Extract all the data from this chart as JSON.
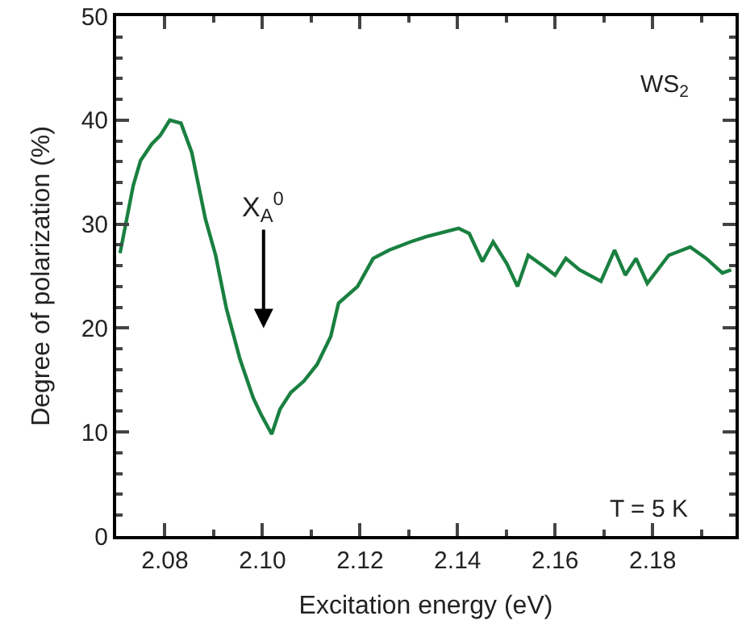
{
  "chart_data": {
    "type": "line",
    "xlabel": "Excitation energy (eV)",
    "ylabel": "Degree of polarization (%)",
    "x": [
      2.0708,
      2.0735,
      2.075,
      2.0773,
      2.079,
      2.081,
      2.0833,
      2.0855,
      2.0883,
      2.0904,
      2.0926,
      2.0954,
      2.0981,
      2.0997,
      2.1019,
      2.1036,
      2.1058,
      2.1085,
      2.1112,
      2.114,
      2.1156,
      2.1195,
      2.1227,
      2.126,
      2.1304,
      2.1336,
      2.1402,
      2.1424,
      2.1451,
      2.1473,
      2.1501,
      2.1523,
      2.1545,
      2.1578,
      2.16,
      2.1622,
      2.165,
      2.1694,
      2.1722,
      2.1744,
      2.1766,
      2.1789,
      2.1833,
      2.1877,
      2.191,
      2.1943,
      2.1961
    ],
    "series": [
      {
        "color": "#1a8040",
        "values": [
          27.2,
          33.7,
          36.1,
          37.7,
          38.5,
          40.0,
          39.7,
          36.9,
          30.5,
          27.0,
          21.9,
          17.0,
          13.3,
          11.7,
          9.8,
          12.2,
          13.8,
          14.9,
          16.5,
          19.2,
          22.4,
          24.0,
          26.7,
          27.5,
          28.3,
          28.8,
          29.6,
          29.1,
          26.4,
          28.3,
          26.2,
          24.0,
          27.0,
          25.9,
          25.1,
          26.7,
          25.6,
          24.5,
          27.5,
          25.1,
          26.7,
          24.3,
          27.0,
          27.8,
          26.7,
          25.3,
          25.6
        ]
      }
    ],
    "xlim": [
      2.07,
      2.197
    ],
    "xticks": [
      2.08,
      {
        "value": 2.1,
        "label": "2.10"
      },
      2.12,
      2.14,
      2.16,
      2.18
    ],
    "ylim": [
      0,
      50
    ],
    "yticks": [
      0,
      10,
      20,
      30,
      40,
      50
    ],
    "annotations": [
      "X$_{A}$$^{0}$",
      "WS$_{2}$",
      "T = 5 K"
    ],
    "marker": "none",
    "line_style": "solid"
  }
}
